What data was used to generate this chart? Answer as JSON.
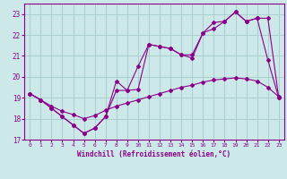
{
  "xlabel": "Windchill (Refroidissement éolien,°C)",
  "bg_color": "#cce8e8",
  "grid_color": "#aacece",
  "line_color": "#8b008b",
  "xlim": [
    -0.5,
    23.5
  ],
  "ylim": [
    17,
    23.5
  ],
  "yticks": [
    17,
    18,
    19,
    20,
    21,
    22,
    23
  ],
  "xticks": [
    0,
    1,
    2,
    3,
    4,
    5,
    6,
    7,
    8,
    9,
    10,
    11,
    12,
    13,
    14,
    15,
    16,
    17,
    18,
    19,
    20,
    21,
    22,
    23
  ],
  "series1_x": [
    0,
    1,
    2,
    3,
    4,
    5,
    6,
    7,
    8,
    9,
    10,
    11,
    12,
    13,
    14,
    15,
    16,
    17,
    18,
    19,
    20,
    21,
    22,
    23
  ],
  "series1_y": [
    19.2,
    18.9,
    18.5,
    18.1,
    17.7,
    17.3,
    17.55,
    18.1,
    19.8,
    19.35,
    19.4,
    21.55,
    21.45,
    21.35,
    21.05,
    20.9,
    22.1,
    22.3,
    22.65,
    23.1,
    22.65,
    22.8,
    20.8,
    19.0
  ],
  "series2_x": [
    0,
    1,
    2,
    3,
    4,
    5,
    6,
    7,
    8,
    9,
    10,
    11,
    12,
    13,
    14,
    15,
    16,
    17,
    18,
    19,
    20,
    21,
    22,
    23
  ],
  "series2_y": [
    19.2,
    18.9,
    18.5,
    18.1,
    17.7,
    17.3,
    17.55,
    18.1,
    19.35,
    19.35,
    20.5,
    21.55,
    21.45,
    21.35,
    21.05,
    21.05,
    22.1,
    22.6,
    22.65,
    23.1,
    22.65,
    22.8,
    22.8,
    19.0
  ],
  "series3_x": [
    0,
    1,
    2,
    3,
    4,
    5,
    6,
    7,
    8,
    9,
    10,
    11,
    12,
    13,
    14,
    15,
    16,
    17,
    18,
    19,
    20,
    21,
    22,
    23
  ],
  "series3_y": [
    19.2,
    18.9,
    18.6,
    18.35,
    18.2,
    18.0,
    18.15,
    18.4,
    18.6,
    18.75,
    18.9,
    19.05,
    19.2,
    19.35,
    19.5,
    19.6,
    19.75,
    19.85,
    19.9,
    19.95,
    19.9,
    19.8,
    19.5,
    19.05
  ]
}
